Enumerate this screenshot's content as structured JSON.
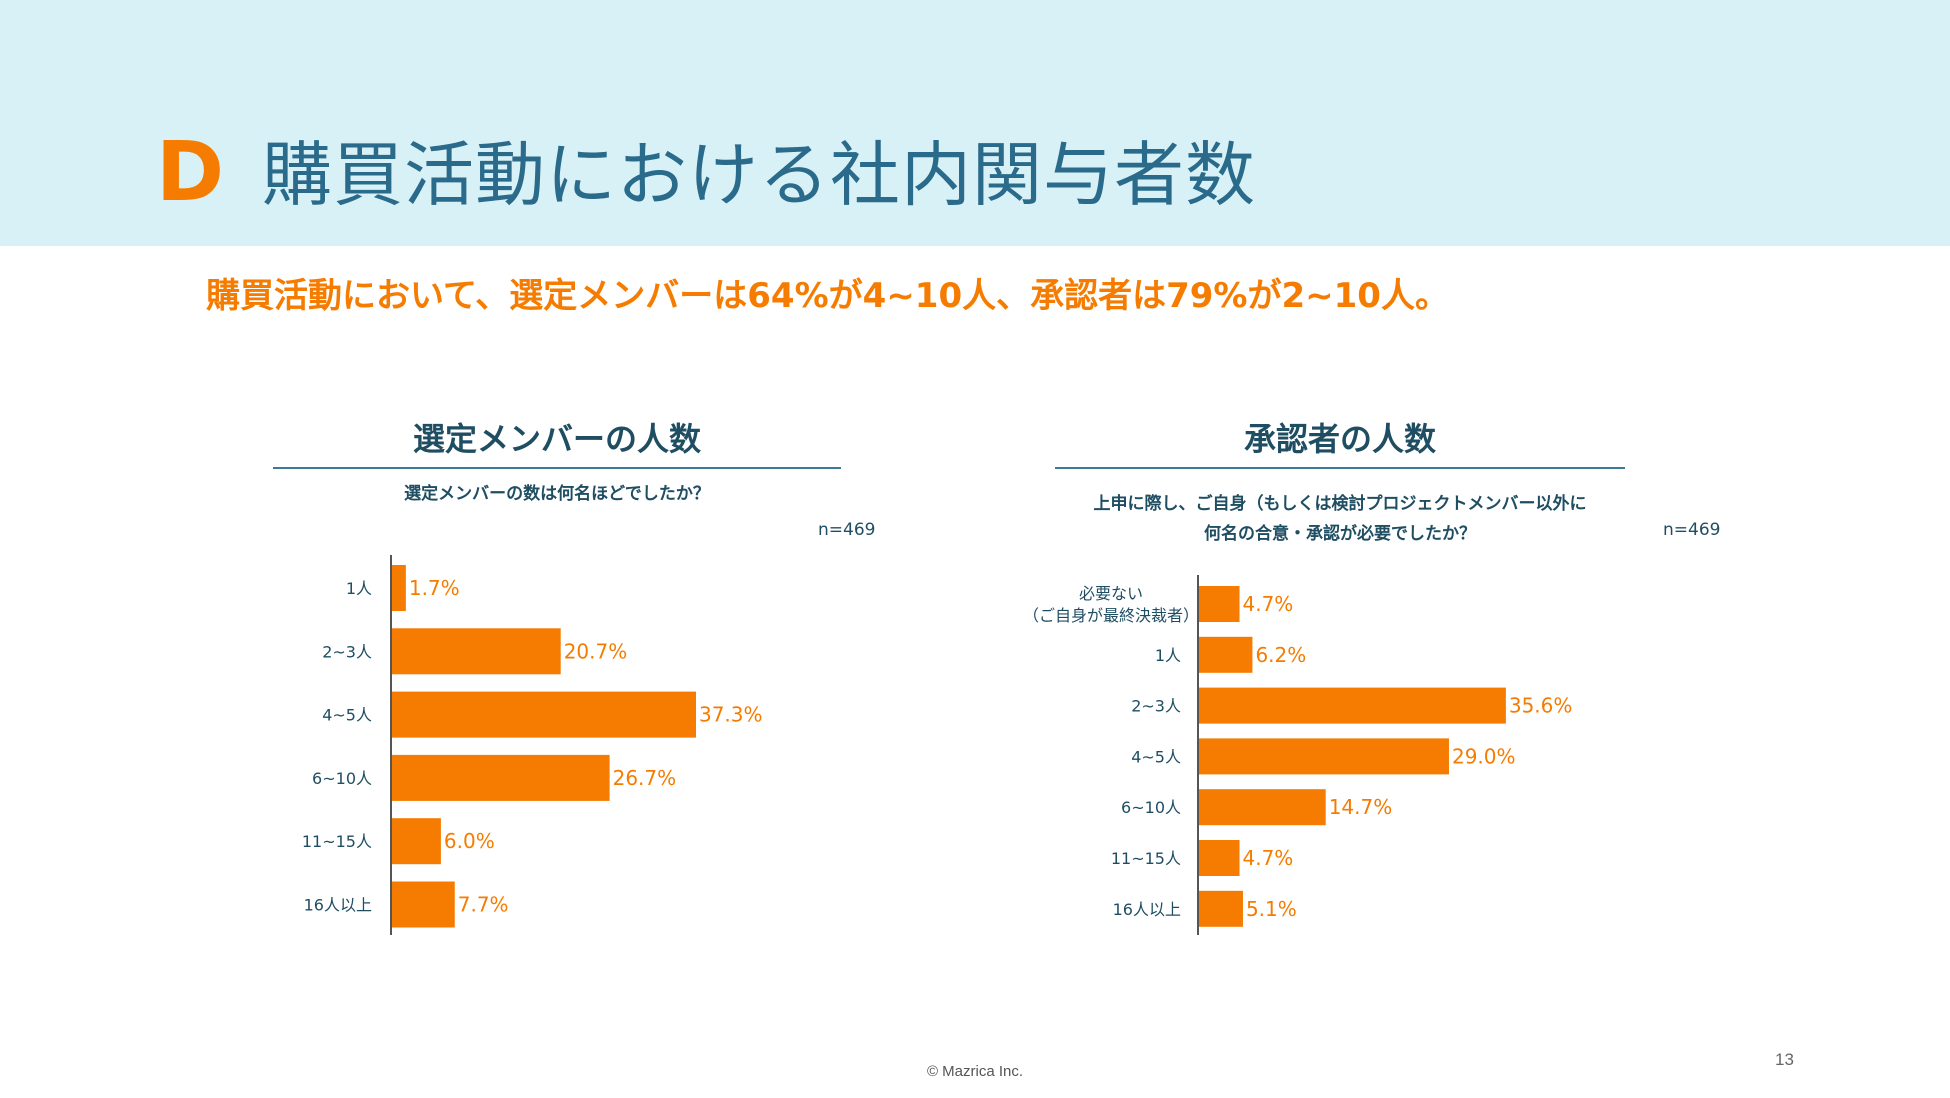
{
  "header": {
    "section_letter": "D",
    "title": "購買活動における社内関与者数"
  },
  "summary": "購買活動において、選定メンバーは64%が4~10人、承認者は79%が2~10人。",
  "colors": {
    "accent": "#f57c00",
    "title_text": "#2a6a8a",
    "dark_text": "#1f4e63",
    "header_bg": "#d8f1f7",
    "bar": "#f57c00"
  },
  "chart_data": [
    {
      "type": "bar",
      "orientation": "horizontal",
      "title": "選定メンバーの人数",
      "question": "選定メンバーの数は何名ほどでしたか？",
      "sample_size": "n=469",
      "categories": [
        "1人",
        "2~3人",
        "4~5人",
        "6~10人",
        "11~15人",
        "16人以上"
      ],
      "values": [
        1.7,
        20.7,
        37.3,
        26.7,
        6.0,
        7.7
      ],
      "value_labels": [
        "1.7%",
        "20.7%",
        "37.3%",
        "26.7%",
        "6.0%",
        "7.7%"
      ],
      "unit": "%"
    },
    {
      "type": "bar",
      "orientation": "horizontal",
      "title": "承認者の人数",
      "question_lines": [
        "上申に際し、ご自身（もしくは検討プロジェクトメンバー以外に",
        "何名の合意・承認が必要でしたか？"
      ],
      "sample_size": "n=469",
      "categories": [
        [
          "必要ない",
          "（ご自身が最終決裁者）"
        ],
        [
          "1人"
        ],
        [
          "2~3人"
        ],
        [
          "4~5人"
        ],
        [
          "6~10人"
        ],
        [
          "11~15人"
        ],
        [
          "16人以上"
        ]
      ],
      "values": [
        4.7,
        6.2,
        35.6,
        29.0,
        14.7,
        4.7,
        5.1
      ],
      "value_labels": [
        "4.7%",
        "6.2%",
        "35.6%",
        "29.0%",
        "14.7%",
        "4.7%",
        "5.1%"
      ],
      "unit": "%"
    }
  ],
  "footer": {
    "copyright": "© Mazrica Inc.",
    "page_number": "13"
  }
}
